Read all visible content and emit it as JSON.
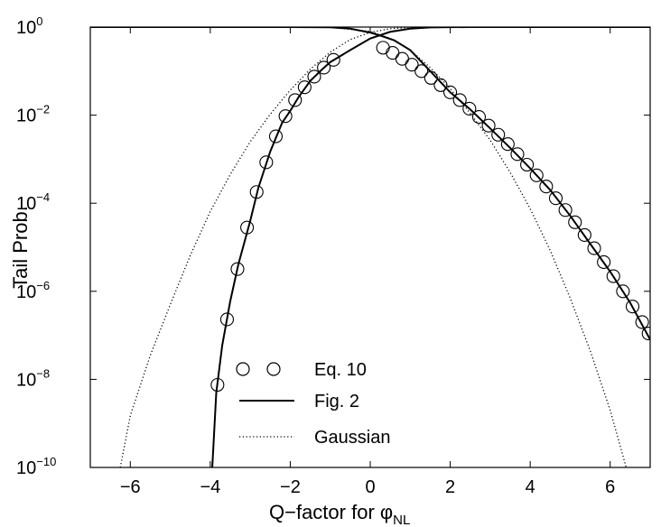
{
  "chart_data": {
    "type": "line",
    "title": "",
    "xlabel": "Q−factor for φ",
    "xlabel_sub": "NL",
    "ylabel": "Tail Prob.",
    "xlim": [
      -7,
      7
    ],
    "ylim": [
      1e-10,
      1
    ],
    "yscale": "log",
    "grid": false,
    "legend_position": "lower-left",
    "x_ticks": [
      {
        "value": -6,
        "label": "−6"
      },
      {
        "value": -4,
        "label": "−4"
      },
      {
        "value": -2,
        "label": "−2"
      },
      {
        "value": 0,
        "label": "0"
      },
      {
        "value": 2,
        "label": "2"
      },
      {
        "value": 4,
        "label": "4"
      },
      {
        "value": 6,
        "label": "6"
      }
    ],
    "y_ticks": [
      {
        "value": 1,
        "base": "10",
        "exp": "0"
      },
      {
        "value": 0.01,
        "base": "10",
        "exp": "−2"
      },
      {
        "value": 0.0001,
        "base": "10",
        "exp": "−4"
      },
      {
        "value": 1e-06,
        "base": "10",
        "exp": "−6"
      },
      {
        "value": 1e-08,
        "base": "10",
        "exp": "−8"
      },
      {
        "value": 1e-10,
        "base": "10",
        "exp": "−10"
      }
    ],
    "series": [
      {
        "name": "Eq. 10",
        "style": "circles",
        "color": "#000000",
        "points": [
          {
            "x": -3.82,
            "y": 7.5e-09
          },
          {
            "x": -3.58,
            "y": 2.3e-07
          },
          {
            "x": -3.32,
            "y": 3.2e-06
          },
          {
            "x": -3.08,
            "y": 2.8e-05
          },
          {
            "x": -2.84,
            "y": 0.00018
          },
          {
            "x": -2.6,
            "y": 0.00085
          },
          {
            "x": -2.36,
            "y": 0.0033
          },
          {
            "x": -2.12,
            "y": 0.0095
          },
          {
            "x": -1.88,
            "y": 0.022
          },
          {
            "x": -1.64,
            "y": 0.043
          },
          {
            "x": -1.4,
            "y": 0.075
          },
          {
            "x": -1.16,
            "y": 0.12
          },
          {
            "x": -0.92,
            "y": 0.18
          },
          {
            "x": 0.32,
            "y": 0.34
          },
          {
            "x": 0.56,
            "y": 0.26
          },
          {
            "x": 0.8,
            "y": 0.19
          },
          {
            "x": 1.04,
            "y": 0.14
          },
          {
            "x": 1.28,
            "y": 0.1
          },
          {
            "x": 1.52,
            "y": 0.07
          },
          {
            "x": 1.76,
            "y": 0.048
          },
          {
            "x": 2.0,
            "y": 0.033
          },
          {
            "x": 2.24,
            "y": 0.022
          },
          {
            "x": 2.48,
            "y": 0.014
          },
          {
            "x": 2.72,
            "y": 0.0091
          },
          {
            "x": 2.96,
            "y": 0.0058
          },
          {
            "x": 3.2,
            "y": 0.0036
          },
          {
            "x": 3.44,
            "y": 0.0022
          },
          {
            "x": 3.68,
            "y": 0.0013
          },
          {
            "x": 3.92,
            "y": 0.00075
          },
          {
            "x": 4.16,
            "y": 0.00043
          },
          {
            "x": 4.4,
            "y": 0.00024
          },
          {
            "x": 4.64,
            "y": 0.00013
          },
          {
            "x": 4.88,
            "y": 7e-05
          },
          {
            "x": 5.12,
            "y": 3.7e-05
          },
          {
            "x": 5.36,
            "y": 1.9e-05
          },
          {
            "x": 5.6,
            "y": 9.5e-06
          },
          {
            "x": 5.84,
            "y": 4.6e-06
          },
          {
            "x": 6.08,
            "y": 2.2e-06
          },
          {
            "x": 6.32,
            "y": 1e-06
          },
          {
            "x": 6.56,
            "y": 4.5e-07
          },
          {
            "x": 6.8,
            "y": 2e-07
          },
          {
            "x": 6.96,
            "y": 1.1e-07
          }
        ]
      },
      {
        "name": "Fig. 2",
        "style": "solid",
        "color": "#000000",
        "segments": [
          [
            {
              "x": -7.0,
              "y": 1.0
            },
            {
              "x": -3.0,
              "y": 1.0
            },
            {
              "x": -2.0,
              "y": 1.0
            },
            {
              "x": -1.0,
              "y": 0.99
            },
            {
              "x": -0.5,
              "y": 0.92
            },
            {
              "x": 0.0,
              "y": 0.75
            },
            {
              "x": 0.3,
              "y": 0.62
            },
            {
              "x": 0.6,
              "y": 0.5
            },
            {
              "x": 1.0,
              "y": 0.3
            },
            {
              "x": 1.5,
              "y": 0.1
            },
            {
              "x": 2.0,
              "y": 0.033
            },
            {
              "x": 2.5,
              "y": 0.0135
            },
            {
              "x": 3.0,
              "y": 0.005
            },
            {
              "x": 3.5,
              "y": 0.0018
            },
            {
              "x": 4.0,
              "y": 0.00062
            },
            {
              "x": 4.5,
              "y": 0.0002
            },
            {
              "x": 5.0,
              "y": 5.2e-05
            },
            {
              "x": 5.5,
              "y": 1.2e-05
            },
            {
              "x": 6.0,
              "y": 2.8e-06
            },
            {
              "x": 6.5,
              "y": 5.5e-07
            },
            {
              "x": 7.0,
              "y": 8e-08
            }
          ],
          [
            {
              "x": -3.95,
              "y": 1e-10
            },
            {
              "x": -3.85,
              "y": 5e-09
            },
            {
              "x": -3.7,
              "y": 6e-08
            },
            {
              "x": -3.5,
              "y": 6e-07
            },
            {
              "x": -3.3,
              "y": 4e-06
            },
            {
              "x": -3.0,
              "y": 4e-05
            },
            {
              "x": -2.8,
              "y": 0.00022
            },
            {
              "x": -2.5,
              "y": 0.0015
            },
            {
              "x": -2.2,
              "y": 0.0068
            },
            {
              "x": -2.0,
              "y": 0.0125
            },
            {
              "x": -1.8,
              "y": 0.025
            },
            {
              "x": -1.5,
              "y": 0.06
            },
            {
              "x": -1.2,
              "y": 0.11
            },
            {
              "x": -1.0,
              "y": 0.16
            },
            {
              "x": -0.5,
              "y": 0.3
            },
            {
              "x": 0.0,
              "y": 0.55
            },
            {
              "x": 0.5,
              "y": 0.78
            },
            {
              "x": 1.0,
              "y": 0.92
            },
            {
              "x": 1.5,
              "y": 0.98
            },
            {
              "x": 2.0,
              "y": 0.995
            },
            {
              "x": 2.5,
              "y": 1.0
            },
            {
              "x": 7.0,
              "y": 1.0
            }
          ]
        ]
      },
      {
        "name": "Gaussian",
        "style": "dotted",
        "color": "#000000",
        "segments": [
          [
            {
              "x": -7.0,
              "y": 1.0
            },
            {
              "x": -3.0,
              "y": 1.0
            },
            {
              "x": -1.0,
              "y": 0.99
            },
            {
              "x": 0.0,
              "y": 0.8
            },
            {
              "x": 0.5,
              "y": 0.55
            },
            {
              "x": 1.0,
              "y": 0.3
            },
            {
              "x": 1.5,
              "y": 0.12
            },
            {
              "x": 2.0,
              "y": 0.04
            },
            {
              "x": 2.5,
              "y": 0.011
            },
            {
              "x": 3.0,
              "y": 0.0027
            },
            {
              "x": 3.5,
              "y": 0.0005
            },
            {
              "x": 4.0,
              "y": 7.5e-05
            },
            {
              "x": 4.5,
              "y": 8.5e-06
            },
            {
              "x": 5.0,
              "y": 7e-07
            },
            {
              "x": 5.5,
              "y": 4.5e-08
            },
            {
              "x": 6.0,
              "y": 2e-09
            },
            {
              "x": 6.4,
              "y": 1e-10
            }
          ],
          [
            {
              "x": -6.25,
              "y": 1e-10
            },
            {
              "x": -6.0,
              "y": 1.5e-09
            },
            {
              "x": -5.5,
              "y": 3.5e-08
            },
            {
              "x": -5.0,
              "y": 5e-07
            },
            {
              "x": -4.5,
              "y": 6.5e-06
            },
            {
              "x": -4.0,
              "y": 6.5e-05
            },
            {
              "x": -3.5,
              "y": 0.00045
            },
            {
              "x": -3.0,
              "y": 0.0025
            },
            {
              "x": -2.5,
              "y": 0.0105
            },
            {
              "x": -2.0,
              "y": 0.037
            },
            {
              "x": -1.5,
              "y": 0.11
            },
            {
              "x": -1.0,
              "y": 0.27
            },
            {
              "x": -0.5,
              "y": 0.52
            },
            {
              "x": 0.0,
              "y": 0.76
            },
            {
              "x": 0.5,
              "y": 0.92
            },
            {
              "x": 1.0,
              "y": 0.98
            },
            {
              "x": 1.5,
              "y": 0.997
            },
            {
              "x": 2.0,
              "y": 1.0
            },
            {
              "x": 7.0,
              "y": 1.0
            }
          ]
        ]
      }
    ]
  }
}
